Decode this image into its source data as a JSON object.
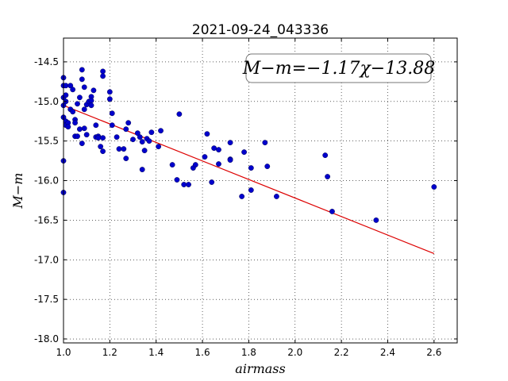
{
  "chart_data": {
    "type": "scatter",
    "title": "2021-09-24_043336",
    "xlabel": "airmass",
    "ylabel": "M−m",
    "xlim": [
      1.0,
      2.7
    ],
    "ylim": [
      -18.05,
      -14.2
    ],
    "inverted_y": false,
    "xticks": [
      1.0,
      1.2,
      1.4,
      1.6,
      1.8,
      2.0,
      2.2,
      2.4,
      2.6
    ],
    "xtick_labels": [
      "1.0",
      "1.2",
      "1.4",
      "1.6",
      "1.8",
      "2.0",
      "2.2",
      "2.4",
      "2.6"
    ],
    "yticks": [
      -14.5,
      -15.0,
      -15.5,
      -16.0,
      -16.5,
      -17.0,
      -17.5,
      -18.0
    ],
    "ytick_labels": [
      "-14.5",
      "-15.0",
      "-15.5",
      "-16.0",
      "-16.5",
      "-17.0",
      "-17.5",
      "-18.0"
    ],
    "grid": true,
    "annotation": "M−m=−1.17χ−13.88",
    "point_color": "#0000cc",
    "fit_color": "#dd0000",
    "fit": {
      "slope": -1.17,
      "intercept": -13.88,
      "x_range": [
        1.0,
        2.6
      ]
    },
    "points": [
      [
        1.0,
        -14.7
      ],
      [
        1.0,
        -14.8
      ],
      [
        1.0,
        -14.95
      ],
      [
        1.0,
        -15.05
      ],
      [
        1.0,
        -15.2
      ],
      [
        1.0,
        -15.75
      ],
      [
        1.0,
        -16.15
      ],
      [
        1.01,
        -14.8
      ],
      [
        1.01,
        -14.92
      ],
      [
        1.01,
        -15.0
      ],
      [
        1.01,
        -15.25
      ],
      [
        1.01,
        -15.3
      ],
      [
        1.02,
        -15.27
      ],
      [
        1.02,
        -15.32
      ],
      [
        1.03,
        -14.8
      ],
      [
        1.03,
        -15.1
      ],
      [
        1.04,
        -14.85
      ],
      [
        1.04,
        -15.13
      ],
      [
        1.05,
        -15.23
      ],
      [
        1.05,
        -15.27
      ],
      [
        1.05,
        -15.44
      ],
      [
        1.06,
        -15.03
      ],
      [
        1.06,
        -15.44
      ],
      [
        1.07,
        -14.95
      ],
      [
        1.07,
        -15.35
      ],
      [
        1.08,
        -14.6
      ],
      [
        1.08,
        -14.72
      ],
      [
        1.08,
        -15.53
      ],
      [
        1.09,
        -14.82
      ],
      [
        1.09,
        -15.1
      ],
      [
        1.09,
        -15.34
      ],
      [
        1.1,
        -15.04
      ],
      [
        1.1,
        -15.42
      ],
      [
        1.11,
        -15.0
      ],
      [
        1.12,
        -14.94
      ],
      [
        1.12,
        -14.99
      ],
      [
        1.12,
        -15.05
      ],
      [
        1.13,
        -14.86
      ],
      [
        1.14,
        -15.3
      ],
      [
        1.14,
        -15.45
      ],
      [
        1.15,
        -15.44
      ],
      [
        1.15,
        -15.46
      ],
      [
        1.16,
        -15.57
      ],
      [
        1.17,
        -14.62
      ],
      [
        1.17,
        -14.68
      ],
      [
        1.17,
        -15.46
      ],
      [
        1.17,
        -15.63
      ],
      [
        1.2,
        -14.88
      ],
      [
        1.2,
        -14.97
      ],
      [
        1.21,
        -15.15
      ],
      [
        1.21,
        -15.3
      ],
      [
        1.23,
        -15.45
      ],
      [
        1.24,
        -15.6
      ],
      [
        1.26,
        -15.6
      ],
      [
        1.27,
        -15.35
      ],
      [
        1.27,
        -15.72
      ],
      [
        1.28,
        -15.27
      ],
      [
        1.3,
        -15.48
      ],
      [
        1.32,
        -15.4
      ],
      [
        1.33,
        -15.45
      ],
      [
        1.34,
        -15.51
      ],
      [
        1.34,
        -15.86
      ],
      [
        1.35,
        -15.62
      ],
      [
        1.36,
        -15.47
      ],
      [
        1.37,
        -15.5
      ],
      [
        1.38,
        -15.39
      ],
      [
        1.41,
        -15.57
      ],
      [
        1.42,
        -15.37
      ],
      [
        1.47,
        -15.8
      ],
      [
        1.49,
        -15.99
      ],
      [
        1.5,
        -15.16
      ],
      [
        1.52,
        -16.05
      ],
      [
        1.54,
        -16.05
      ],
      [
        1.56,
        -15.84
      ],
      [
        1.57,
        -15.8
      ],
      [
        1.61,
        -15.7
      ],
      [
        1.62,
        -15.41
      ],
      [
        1.64,
        -16.02
      ],
      [
        1.65,
        -15.59
      ],
      [
        1.67,
        -15.61
      ],
      [
        1.67,
        -15.79
      ],
      [
        1.72,
        -15.52
      ],
      [
        1.72,
        -15.73
      ],
      [
        1.72,
        -15.74
      ],
      [
        1.77,
        -16.2
      ],
      [
        1.78,
        -15.64
      ],
      [
        1.81,
        -15.84
      ],
      [
        1.81,
        -16.12
      ],
      [
        1.87,
        -15.52
      ],
      [
        1.88,
        -15.82
      ],
      [
        1.92,
        -16.2
      ],
      [
        2.13,
        -15.68
      ],
      [
        2.14,
        -15.95
      ],
      [
        2.16,
        -16.39
      ],
      [
        2.35,
        -16.5
      ],
      [
        2.6,
        -16.08
      ]
    ]
  }
}
